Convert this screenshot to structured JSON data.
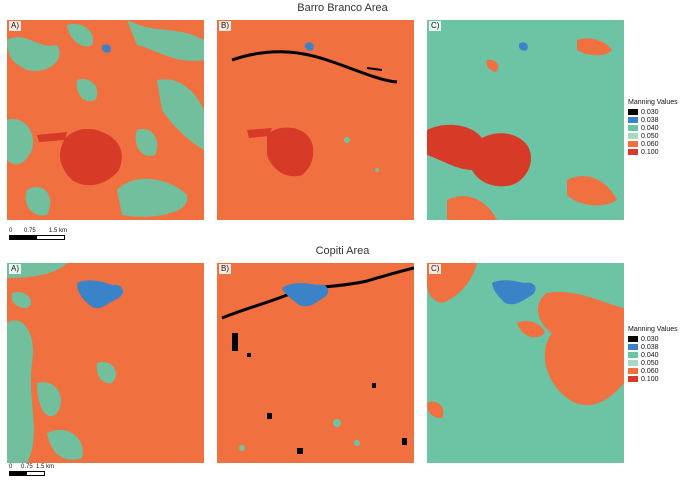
{
  "sections": [
    {
      "title": "Barro Branco Area",
      "panels": [
        "A)",
        "B)",
        "C)"
      ],
      "scale_labels": [
        "0",
        "0.75",
        "1.5 km"
      ]
    },
    {
      "title": "Copiti Area",
      "panels": [
        "A)",
        "B)",
        "C)"
      ],
      "scale_labels": [
        "0",
        "0.75",
        "1.5 km"
      ]
    }
  ],
  "legend": {
    "title": "Manning Values",
    "items": [
      {
        "label": "0.030",
        "color": "#000000"
      },
      {
        "label": "0.038",
        "color": "#3b83c9"
      },
      {
        "label": "0.040",
        "color": "#6cc4a4"
      },
      {
        "label": "0.050",
        "color": "#a6dbbd"
      },
      {
        "label": "0.060",
        "color": "#f07040"
      },
      {
        "label": "0.100",
        "color": "#d83a28"
      }
    ]
  },
  "colors": {
    "orange": "#f07040",
    "teal": "#6cc4a4",
    "red": "#d83a28",
    "blue": "#3b83c9",
    "black": "#000000"
  }
}
